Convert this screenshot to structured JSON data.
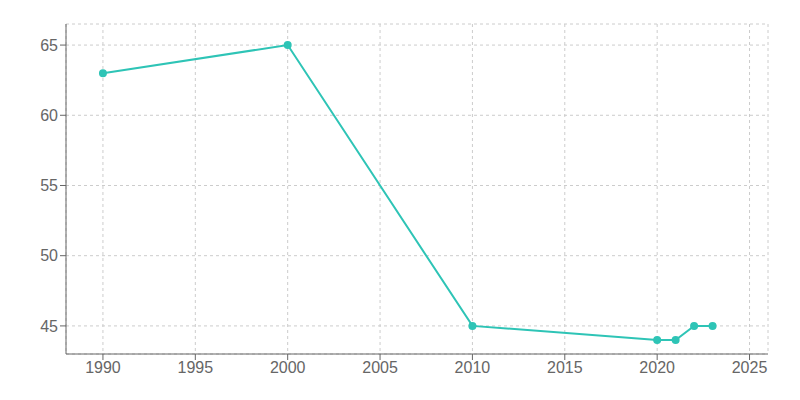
{
  "chart_data": {
    "type": "line",
    "x": [
      1990,
      2000,
      2010,
      2020,
      2021,
      2022,
      2023
    ],
    "values": [
      63,
      65,
      45,
      44,
      44,
      45,
      45
    ],
    "color": "#2EC4B6",
    "marker": "circle",
    "xlim": [
      1988,
      2026
    ],
    "ylim": [
      43,
      66.5
    ],
    "xticks": [
      1990,
      1995,
      2000,
      2005,
      2010,
      2015,
      2020,
      2025
    ],
    "yticks": [
      45,
      50,
      55,
      60,
      65
    ],
    "grid": true
  }
}
